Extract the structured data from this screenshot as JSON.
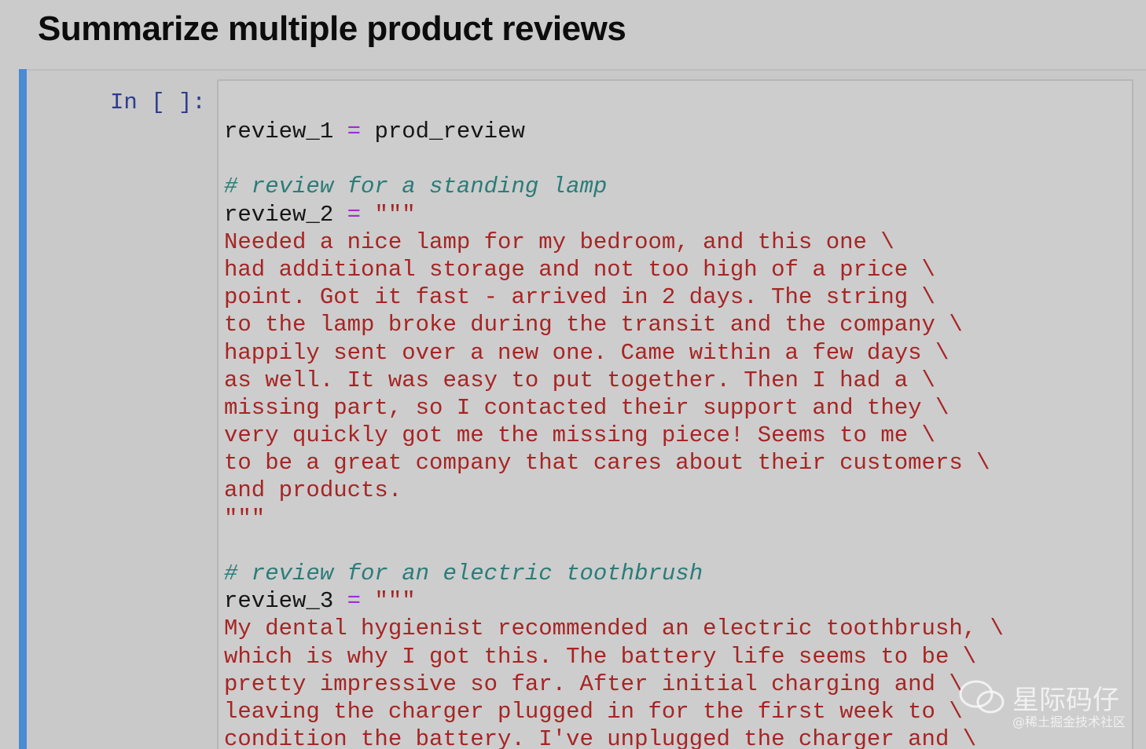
{
  "heading": "Summarize multiple product reviews",
  "cell": {
    "prompt": "In [ ]:",
    "colors": {
      "var": "#161616",
      "op": "#a52bd0",
      "str": "#a82424",
      "comment": "#2c7c78"
    },
    "code": [
      [
        {
          "text": "review_1 ",
          "style": "var"
        },
        {
          "text": "=",
          "style": "op"
        },
        {
          "text": " prod_review",
          "style": "var"
        }
      ],
      [],
      [
        {
          "text": "# review for a standing lamp",
          "style": "comment"
        }
      ],
      [
        {
          "text": "review_2 ",
          "style": "var"
        },
        {
          "text": "=",
          "style": "op"
        },
        {
          "text": " \"\"\"",
          "style": "str"
        }
      ],
      [
        {
          "text": "Needed a nice lamp for my bedroom, and this one \\",
          "style": "str"
        }
      ],
      [
        {
          "text": "had additional storage and not too high of a price \\",
          "style": "str"
        }
      ],
      [
        {
          "text": "point. Got it fast - arrived in 2 days. The string \\",
          "style": "str"
        }
      ],
      [
        {
          "text": "to the lamp broke during the transit and the company \\",
          "style": "str"
        }
      ],
      [
        {
          "text": "happily sent over a new one. Came within a few days \\",
          "style": "str"
        }
      ],
      [
        {
          "text": "as well. It was easy to put together. Then I had a \\",
          "style": "str"
        }
      ],
      [
        {
          "text": "missing part, so I contacted their support and they \\",
          "style": "str"
        }
      ],
      [
        {
          "text": "very quickly got me the missing piece! Seems to me \\",
          "style": "str"
        }
      ],
      [
        {
          "text": "to be a great company that cares about their customers \\",
          "style": "str"
        }
      ],
      [
        {
          "text": "and products.",
          "style": "str"
        }
      ],
      [
        {
          "text": "\"\"\"",
          "style": "str"
        }
      ],
      [],
      [
        {
          "text": "# review for an electric toothbrush",
          "style": "comment"
        }
      ],
      [
        {
          "text": "review_3 ",
          "style": "var"
        },
        {
          "text": "=",
          "style": "op"
        },
        {
          "text": " \"\"\"",
          "style": "str"
        }
      ],
      [
        {
          "text": "My dental hygienist recommended an electric toothbrush, \\",
          "style": "str"
        }
      ],
      [
        {
          "text": "which is why I got this. The battery life seems to be \\",
          "style": "str"
        }
      ],
      [
        {
          "text": "pretty impressive so far. After initial charging and \\",
          "style": "str"
        }
      ],
      [
        {
          "text": "leaving the charger plugged in for the first week to \\",
          "style": "str"
        }
      ],
      [
        {
          "text": "condition the battery. I've unplugged the charger and \\",
          "style": "str"
        }
      ]
    ]
  },
  "watermark": {
    "name": "星际码仔",
    "source": "@稀土掘金技术社区"
  }
}
